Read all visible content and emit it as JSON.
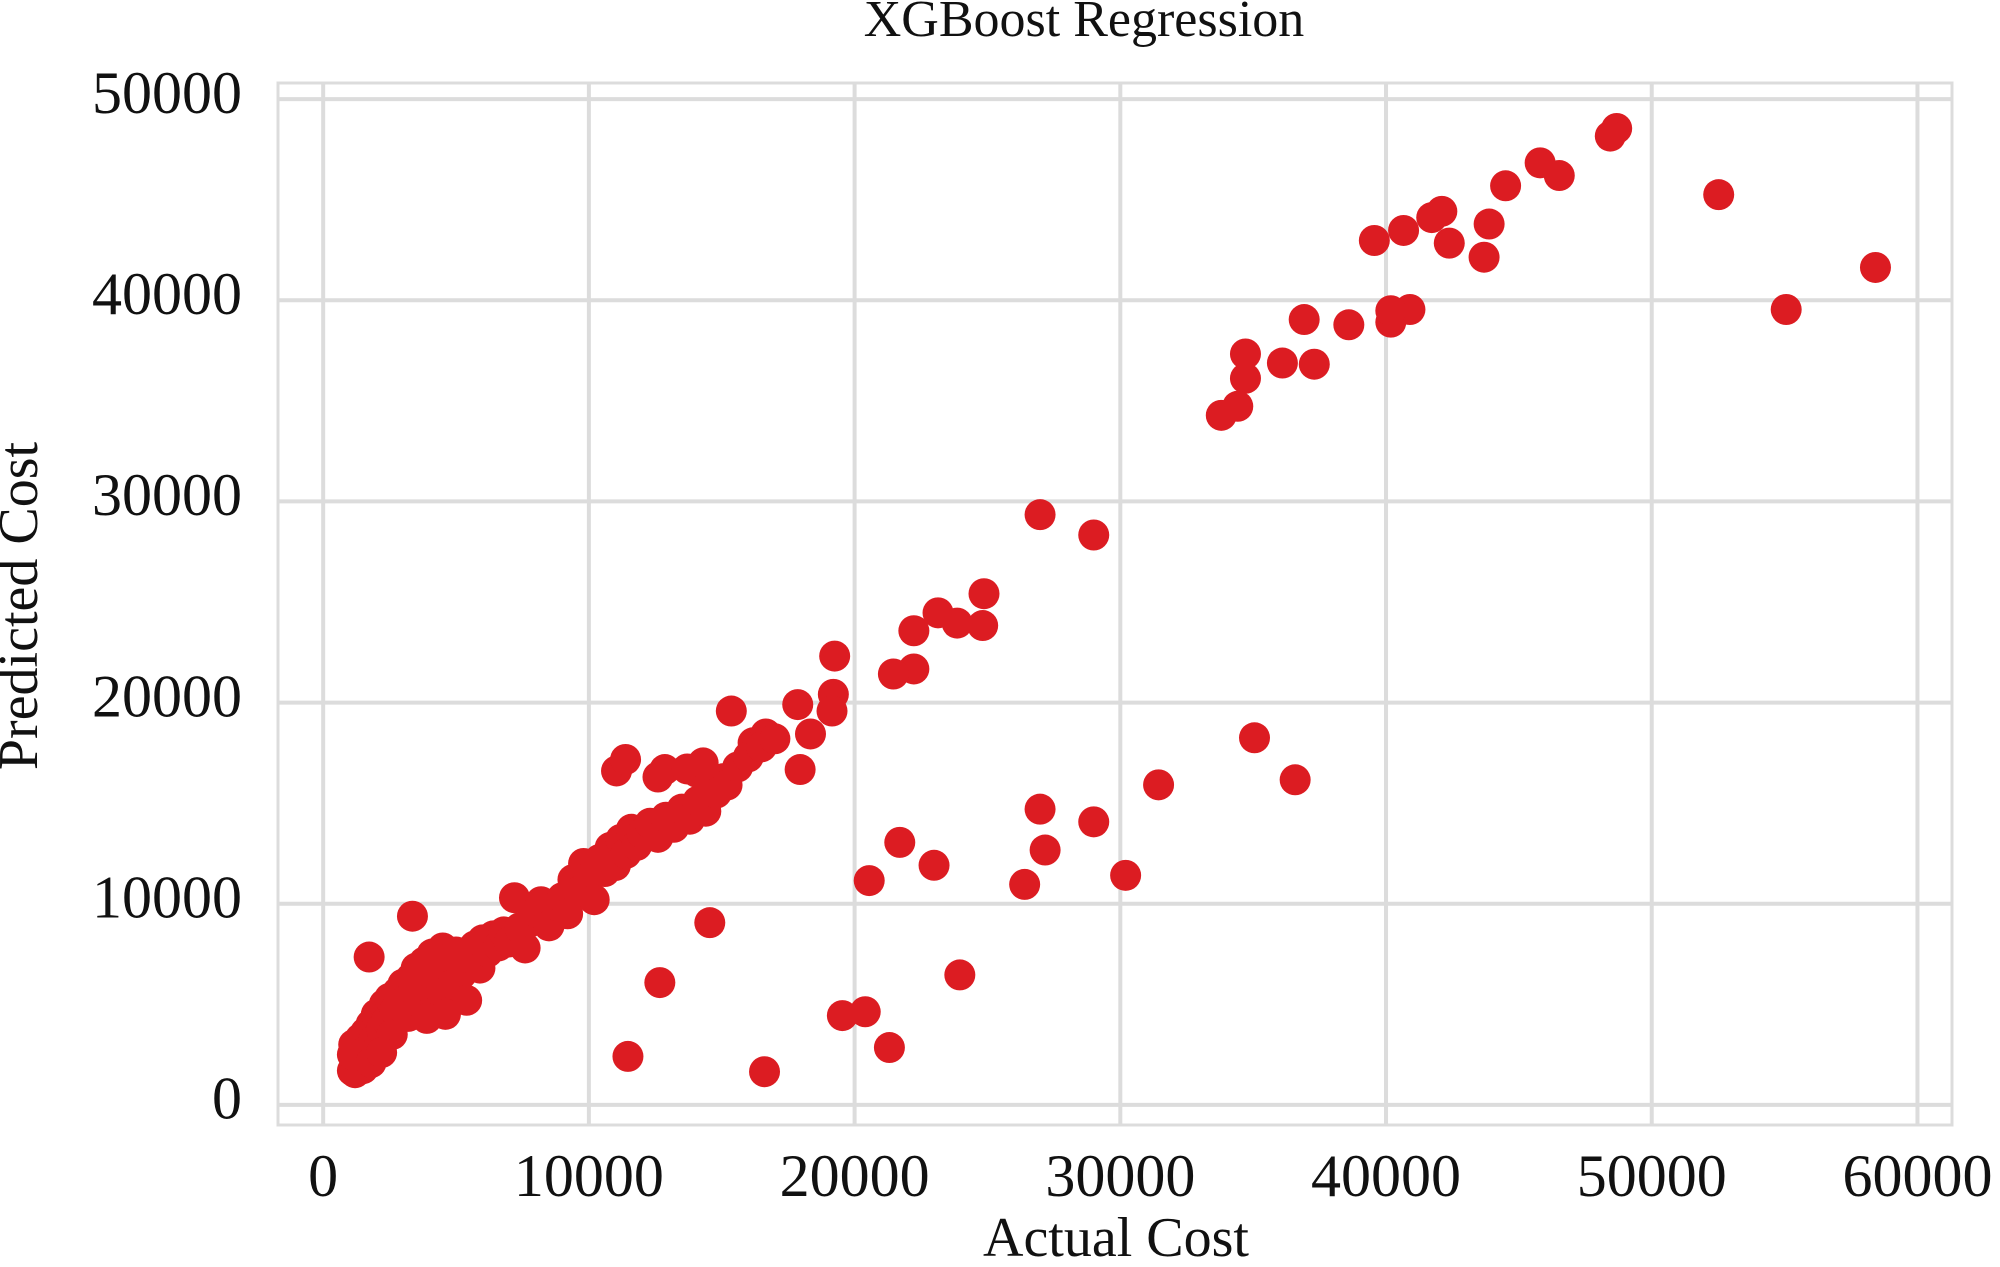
{
  "chart_data": {
    "type": "scatter",
    "title": "XGBoost Regression",
    "x_label": "Actual Cost",
    "y_label": "Predicted Cost",
    "color": "#dc1c22",
    "grid": true,
    "xlim": [
      -1700,
      61300
    ],
    "ylim": [
      -1000,
      50800
    ],
    "xticks": [
      0,
      10000,
      20000,
      30000,
      40000,
      50000,
      60000
    ],
    "yticks": [
      0,
      10000,
      20000,
      30000,
      40000,
      50000
    ],
    "x": [
      48680,
      48440,
      52520,
      58420,
      55060,
      45800,
      46520,
      44500,
      42100,
      41720,
      40660,
      39560,
      42380,
      43880,
      43690,
      36920,
      38600,
      40180,
      40900,
      40180,
      34710,
      34710,
      36100,
      37300,
      33800,
      34420,
      26980,
      29000,
      24870,
      24820,
      23140,
      23860,
      22230,
      22230,
      21460,
      19250,
      19200,
      19150,
      17860,
      18340,
      17950,
      15360,
      16180,
      16660,
      15070,
      14060,
      12860,
      11040,
      11380,
      35050,
      36580,
      31440,
      29000,
      26980,
      27170,
      26400,
      30200,
      21700,
      22990,
      20550,
      14550,
      12670,
      23960,
      19540,
      20400,
      21310,
      11470,
      16610,
      1730,
      3360,
      1100,
      1200,
      1300,
      1150,
      1400,
      1500,
      1600,
      1700,
      1800,
      1900,
      2000,
      2100,
      2200,
      2300,
      2400,
      2500,
      2600,
      2700,
      2800,
      2900,
      3000,
      3100,
      3200,
      3300,
      3400,
      3500,
      3600,
      3700,
      3800,
      3900,
      4000,
      4100,
      4200,
      4300,
      4400,
      4500,
      4600,
      4700,
      4800,
      4900,
      5000,
      5200,
      5400,
      5500,
      5700,
      5900,
      6000,
      6200,
      6400,
      6600,
      6800,
      7000,
      7200,
      7400,
      7600,
      7800,
      8000,
      8200,
      8500,
      8800,
      9000,
      9200,
      9400,
      9600,
      9800,
      10000,
      10200,
      10400,
      10600,
      10800,
      11000,
      11200,
      11400,
      11600,
      11800,
      12000,
      12300,
      12600,
      12900,
      13200,
      13500,
      13800,
      14100,
      14400,
      14800,
      15200,
      15600,
      16000,
      16500,
      17000,
      13700,
      14300,
      12600,
      1200,
      1100,
      1500,
      1800,
      2200,
      3900,
      4600
    ],
    "y": [
      48540,
      48160,
      45250,
      41630,
      39540,
      46830,
      46200,
      45690,
      44420,
      44110,
      43470,
      42970,
      42840,
      43790,
      42140,
      39040,
      38780,
      38910,
      39540,
      39480,
      37330,
      36120,
      36880,
      36820,
      34280,
      34730,
      29340,
      28330,
      25410,
      23830,
      24460,
      23950,
      23570,
      21670,
      21420,
      22310,
      20410,
      19580,
      19900,
      18440,
      16670,
      19580,
      18000,
      18440,
      16220,
      16540,
      16670,
      16600,
      17170,
      18250,
      16160,
      15910,
      14070,
      14700,
      12670,
      10960,
      11410,
      13050,
      11910,
      11150,
      9060,
      6080,
      6460,
      4440,
      4630,
      2850,
      2410,
      1650,
      7350,
      9380,
      1700,
      2200,
      2600,
      3000,
      3300,
      2800,
      3600,
      2400,
      4000,
      3200,
      4500,
      2900,
      3800,
      5000,
      4200,
      5300,
      3500,
      4700,
      5600,
      4900,
      6000,
      5200,
      4400,
      6300,
      5700,
      6800,
      5100,
      6200,
      7100,
      5900,
      6600,
      7500,
      4600,
      7000,
      6200,
      7800,
      5600,
      6900,
      7300,
      6000,
      7600,
      6500,
      5200,
      7300,
      7900,
      6800,
      8200,
      7600,
      8400,
      7900,
      8600,
      8100,
      10300,
      8800,
      7800,
      9100,
      9600,
      10100,
      8900,
      9900,
      10300,
      9500,
      11200,
      10600,
      12000,
      11300,
      10200,
      12200,
      11600,
      12800,
      11900,
      13200,
      12500,
      13700,
      12900,
      13500,
      14000,
      13300,
      14300,
      13800,
      14700,
      14200,
      15100,
      14600,
      15500,
      15900,
      16800,
      17300,
      17800,
      18200,
      16700,
      17000,
      16300,
      1600,
      2500,
      1800,
      2100,
      2600,
      4300,
      4500
    ]
  }
}
